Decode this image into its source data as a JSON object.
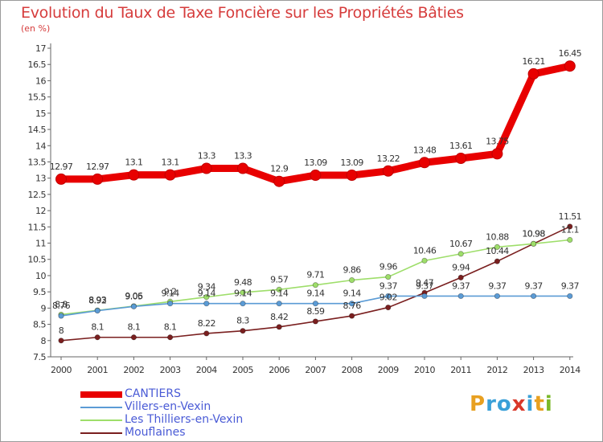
{
  "title": "Evolution du Taux de Taxe Foncière sur les Propriétés Bâties",
  "unit_label": "(en %)",
  "logo": {
    "text": "Proxiti",
    "colors": [
      "#e8a020",
      "#3aa0d8",
      "#3aa0d8",
      "#d9382a",
      "#3aa0d8",
      "#e8a020",
      "#7ab828"
    ]
  },
  "chart_data": {
    "type": "line",
    "title": "Evolution du Taux de Taxe Foncière sur les Propriétés Bâties",
    "ylabel": "(en %)",
    "xlabel": "",
    "ylim": [
      7.5,
      17
    ],
    "ytick_step": 0.5,
    "categories": [
      "2000",
      "2001",
      "2002",
      "2003",
      "2004",
      "2005",
      "2006",
      "2007",
      "2008",
      "2009",
      "2010",
      "2011",
      "2012",
      "2013",
      "2014"
    ],
    "series": [
      {
        "name": "CANTIERS",
        "color": "#e80000",
        "values": [
          12.97,
          12.97,
          13.1,
          13.1,
          13.3,
          13.3,
          12.9,
          13.09,
          13.09,
          13.22,
          13.48,
          13.61,
          13.75,
          16.21,
          16.45
        ],
        "labels": [
          "12.97",
          "12.97",
          "13.1",
          "13.1",
          "13.3",
          "13.3",
          "12.9",
          "13.09",
          "13.09",
          "13.22",
          "13.48",
          "13.61",
          "13.75",
          "16.21",
          "16.45"
        ]
      },
      {
        "name": "Villers-en-Vexin",
        "color": "#5b9bd5",
        "values": [
          8.76,
          8.92,
          9.05,
          9.14,
          9.14,
          9.14,
          9.14,
          9.14,
          9.14,
          9.37,
          9.37,
          9.37,
          9.37,
          9.37,
          9.37
        ],
        "labels": [
          "8.76",
          "8.92",
          "9.05",
          "9.14",
          "9.14",
          "9.14",
          "9.14",
          "9.14",
          "9.14",
          "9.37",
          "9.37",
          "9.37",
          "9.37",
          "9.37",
          "9.37"
        ]
      },
      {
        "name": "Les Thilliers-en-Vexin",
        "color": "#9ede6a",
        "values": [
          8.8,
          8.93,
          9.06,
          9.2,
          9.34,
          9.48,
          9.57,
          9.71,
          9.86,
          9.96,
          10.46,
          10.67,
          10.88,
          10.98,
          11.1
        ],
        "labels": [
          "8.8",
          "8.93",
          "9.06",
          "9.2",
          "9.34",
          "9.48",
          "9.57",
          "9.71",
          "9.86",
          "9.96",
          "10.46",
          "10.67",
          "10.88",
          "10.98",
          "11.1"
        ]
      },
      {
        "name": "Mouflaines",
        "color": "#7a1f1f",
        "values": [
          8,
          8.1,
          8.1,
          8.1,
          8.22,
          8.3,
          8.42,
          8.59,
          8.76,
          9.02,
          9.47,
          9.94,
          10.44,
          10.98,
          11.51
        ],
        "labels": [
          "8",
          "8.1",
          "8.1",
          "8.1",
          "8.22",
          "8.3",
          "8.42",
          "8.59",
          "8.76",
          "9.02",
          "9.47",
          "9.94",
          "10.44",
          "10.98",
          "11.51"
        ]
      }
    ],
    "grid": false,
    "legend_position": "bottom-left"
  }
}
